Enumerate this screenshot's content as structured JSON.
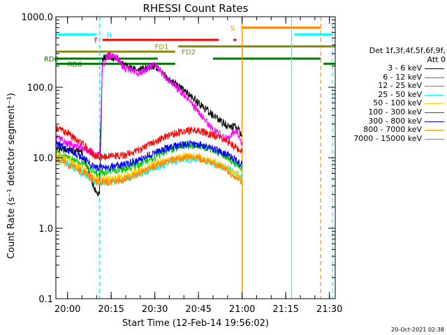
{
  "chart_data": {
    "type": "line",
    "title": "RHESSI Count Rates",
    "xlabel": "Start Time (12-Feb-14 19:56:02)",
    "ylabel": "Count Rate (s⁻¹ detector segment⁻¹)",
    "yscale": "log",
    "ylim": [
      0.1,
      1000
    ],
    "xlim_minutes_after_start": [
      0,
      96
    ],
    "x_ticks": [
      "20:00",
      "20:15",
      "20:30",
      "20:45",
      "21:00",
      "21:15",
      "21:30"
    ],
    "y_ticks": [
      "0.1",
      "1.0",
      "10.0",
      "100.0",
      "1000.0"
    ],
    "grid": false,
    "legend_placement": "right",
    "legend_header": [
      "Det 1f,3f,4f,5f,6f,9f,",
      "Att 0"
    ],
    "series": [
      {
        "name": "3 - 6 keV",
        "color": "#000000",
        "x": [
          "19:56",
          "20:00",
          "20:05",
          "20:10",
          "20:11",
          "20:12",
          "20:14",
          "20:17",
          "20:20",
          "20:25",
          "20:30",
          "20:35",
          "20:40",
          "20:45",
          "20:50",
          "20:55",
          "20:58",
          "21:00"
        ],
        "y": [
          13.5,
          13,
          12,
          3,
          3,
          250,
          280,
          250,
          200,
          180,
          200,
          130,
          90,
          60,
          40,
          28,
          28,
          20
        ]
      },
      {
        "name": "6 - 12 keV",
        "color": "#ff00ff",
        "x": [
          "19:56",
          "20:00",
          "20:05",
          "20:10",
          "20:11",
          "20:12",
          "20:14",
          "20:17",
          "20:20",
          "20:25",
          "20:30",
          "20:35",
          "20:40",
          "20:45",
          "20:50",
          "20:55",
          "20:58",
          "21:00"
        ],
        "y": [
          20,
          16,
          14,
          11,
          11,
          200,
          280,
          260,
          180,
          160,
          210,
          120,
          80,
          45,
          25,
          18,
          25,
          15
        ]
      },
      {
        "name": "12 - 25 keV",
        "color": "#00cc00",
        "x": [
          "19:56",
          "20:00",
          "20:05",
          "20:10",
          "20:15",
          "20:20",
          "20:25",
          "20:30",
          "20:35",
          "20:40",
          "20:45",
          "20:50",
          "20:55",
          "21:00"
        ],
        "y": [
          12,
          10,
          8,
          6,
          6.5,
          7,
          8,
          10,
          13,
          15,
          15,
          13,
          10,
          7
        ]
      },
      {
        "name": "25 - 50 keV",
        "color": "#00ffff",
        "x": [
          "19:56",
          "20:00",
          "20:05",
          "20:10",
          "20:15",
          "20:20",
          "20:25",
          "20:30",
          "20:35",
          "20:40",
          "20:45",
          "20:50",
          "20:55",
          "21:00"
        ],
        "y": [
          10,
          8,
          6,
          4.5,
          4.5,
          5,
          6,
          7,
          8.5,
          9.5,
          9.5,
          8.5,
          7,
          5.5
        ]
      },
      {
        "name": "50 - 100 keV",
        "color": "#ffcc00",
        "x": [
          "19:56",
          "20:00",
          "20:05",
          "20:10",
          "20:15",
          "20:20",
          "20:25",
          "20:30",
          "20:35",
          "20:40",
          "20:45",
          "20:50",
          "20:55",
          "21:00"
        ],
        "y": [
          11,
          9,
          7,
          5,
          5,
          5.5,
          6.5,
          8,
          9.5,
          10.5,
          10.5,
          9,
          7,
          5
        ]
      },
      {
        "name": "100 - 300 keV",
        "color": "#ff0000",
        "x": [
          "19:56",
          "20:00",
          "20:05",
          "20:10",
          "20:15",
          "20:20",
          "20:25",
          "20:30",
          "20:35",
          "20:40",
          "20:45",
          "20:50",
          "20:55",
          "21:00"
        ],
        "y": [
          27,
          22,
          16,
          10,
          10.5,
          11,
          13,
          17,
          21,
          24,
          24,
          21,
          17,
          12
        ]
      },
      {
        "name": "300 - 800 keV",
        "color": "#0000ff",
        "x": [
          "19:56",
          "20:00",
          "20:05",
          "20:10",
          "20:15",
          "20:20",
          "20:25",
          "20:30",
          "20:35",
          "20:40",
          "20:45",
          "20:50",
          "20:55",
          "21:00"
        ],
        "y": [
          16,
          13,
          10,
          7,
          7.5,
          8,
          9.5,
          12,
          14,
          15.5,
          15.5,
          13.5,
          11,
          8
        ]
      },
      {
        "name": "800 - 7000 keV",
        "color": "#ff8800",
        "x": [
          "19:56",
          "20:00",
          "20:05",
          "20:10",
          "20:15",
          "20:20",
          "20:25",
          "20:30",
          "20:35",
          "20:40",
          "20:45",
          "20:50",
          "20:55",
          "21:00"
        ],
        "y": [
          10,
          8,
          6.5,
          4.5,
          4.5,
          5,
          6,
          7.5,
          9,
          10,
          10,
          8.5,
          6.5,
          4.5
        ]
      },
      {
        "name": "7000 - 15000 keV",
        "color": "#8a8a00",
        "x": [],
        "y": []
      }
    ],
    "annotations": {
      "flag_labels": [
        {
          "text": "N",
          "color": "#00ffff"
        },
        {
          "text": "F",
          "color": "#ff0000"
        },
        {
          "text": "S",
          "color": "#ff8800"
        },
        {
          "text": "FD1",
          "color": "#8a8a00"
        },
        {
          "text": "FD2",
          "color": "#8a8a00"
        },
        {
          "text": "RD0",
          "color": "#007700"
        },
        {
          "text": "RD6",
          "color": "#007700"
        }
      ],
      "flag_intervals": [
        {
          "flag": "N",
          "color": "#00ffff",
          "y": 560,
          "from": "19:56",
          "to": "20:10"
        },
        {
          "flag": "N",
          "color": "#00ffff",
          "y": 560,
          "from": "21:18",
          "to": "21:31"
        },
        {
          "flag": "F",
          "color": "#ff0000",
          "y": 470,
          "from": "20:12",
          "to": "20:52"
        },
        {
          "flag": "F",
          "color": "#ff0000",
          "y": 470,
          "from": "20:57",
          "to": "20:58"
        },
        {
          "flag": "S",
          "color": "#ff8800",
          "y": 700,
          "from": "21:00",
          "to": "21:27"
        },
        {
          "flag": "FD1",
          "color": "#8a8a00",
          "y": 380,
          "from": "20:38",
          "to": "21:32"
        },
        {
          "flag": "FD2",
          "color": "#8a8a00",
          "y": 320,
          "from": "19:56",
          "to": "20:37"
        },
        {
          "flag": "RD0",
          "color": "#007700",
          "y": 255,
          "from": "19:56",
          "to": "20:31"
        },
        {
          "flag": "RD0",
          "color": "#007700",
          "y": 255,
          "from": "20:50",
          "to": "21:27"
        },
        {
          "flag": "RD6",
          "color": "#007700",
          "y": 215,
          "from": "19:56",
          "to": "20:37"
        },
        {
          "flag": "RD6",
          "color": "#007700",
          "y": 215,
          "from": "21:28",
          "to": "21:32"
        }
      ],
      "vertical_lines": [
        {
          "time": "19:56",
          "color": "#00ffff",
          "style": "solid"
        },
        {
          "time": "20:11",
          "color": "#00ffff",
          "style": "dashed"
        },
        {
          "time": "21:00",
          "color": "#ff8800",
          "style": "solid"
        },
        {
          "time": "21:17",
          "color": "#00ffff",
          "style": "solid"
        },
        {
          "time": "21:27",
          "color": "#ff8800",
          "style": "dashed"
        },
        {
          "time": "21:31",
          "color": "#00ffff",
          "style": "dashed"
        }
      ]
    }
  },
  "timestamp": "20-Oct-2021 02:38"
}
